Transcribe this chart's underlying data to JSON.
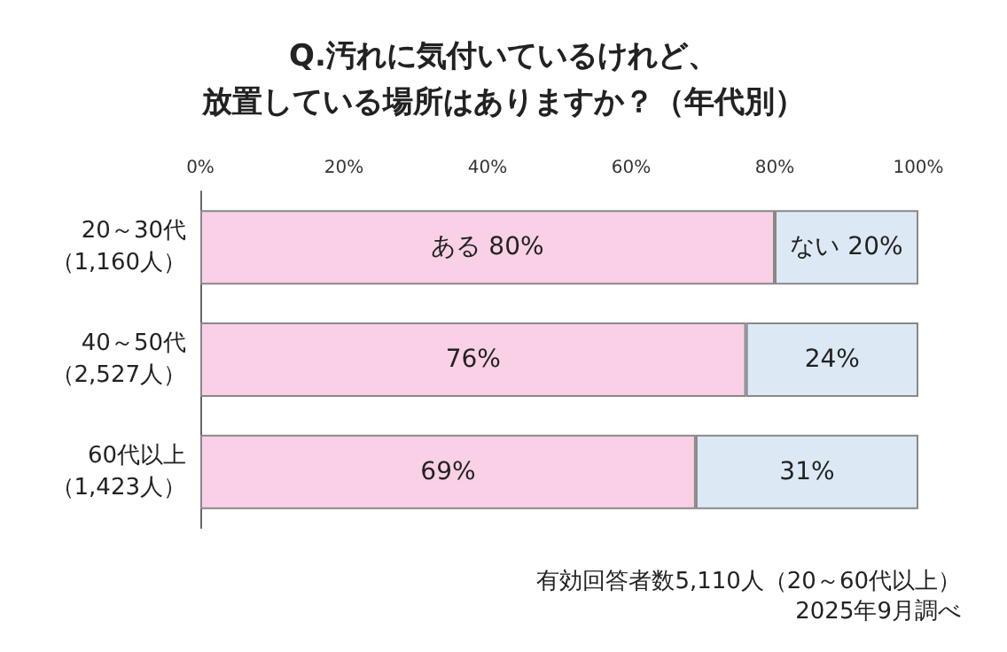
{
  "chart_data": {
    "type": "bar",
    "orientation": "horizontal",
    "stacked": true,
    "title": "Q.汚れに気付いているけれど、放置している場所はありますか？（年代別）",
    "categories": [
      "20～30代（1,160人）",
      "40～50代（2,527人）",
      "60代以上（1,423人）"
    ],
    "series": [
      {
        "color": "#f9d0e6",
        "values": [
          80,
          76,
          69
        ],
        "value_labels": [
          "ある 80%",
          "76%",
          "69%"
        ]
      },
      {
        "color": "#dce9f5",
        "values": [
          20,
          24,
          31
        ],
        "value_labels": [
          "ない 20%",
          "24%",
          "31%"
        ]
      }
    ],
    "xlim": [
      0,
      100
    ],
    "xticks": [
      {
        "value": 0,
        "label": "0%"
      },
      {
        "value": 20,
        "label": "20%"
      },
      {
        "value": 40,
        "label": "40%"
      },
      {
        "value": 60,
        "label": "60%"
      },
      {
        "value": 80,
        "label": "80%"
      },
      {
        "value": 100,
        "label": "100%"
      }
    ],
    "annotations": [
      "有効回答者数5,110人（20～60代以上）",
      "2025年9月調べ"
    ]
  }
}
